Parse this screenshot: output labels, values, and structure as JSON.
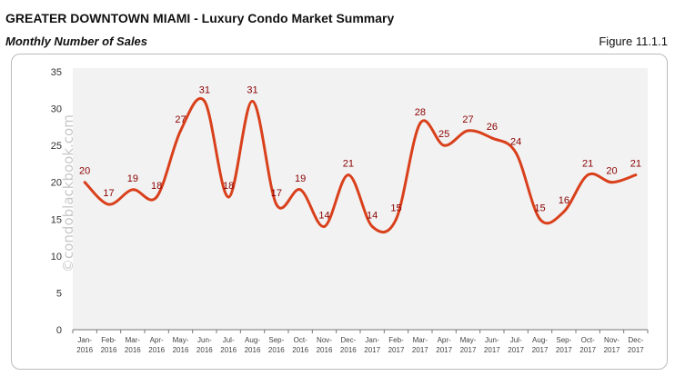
{
  "header": {
    "title": "GREATER DOWNTOWN MIAMI - Luxury Condo Market Summary",
    "subtitle": "Monthly Number of Sales",
    "figure": "Figure 11.1.1"
  },
  "chart_data": {
    "type": "line",
    "title": "",
    "xlabel": "",
    "ylabel": "",
    "ylim": [
      0,
      35
    ],
    "yticks": [
      0,
      5,
      10,
      15,
      20,
      25,
      30,
      35
    ],
    "grid": false,
    "line_color": "#d9401c",
    "label_color": "#8b0000",
    "plot_background": "#f2f2f2",
    "watermark": "©condoblackbook.com",
    "categories": [
      "Jan-2016",
      "Feb-2016",
      "Mar-2016",
      "Apr-2016",
      "May-2016",
      "Jun-2016",
      "Jul-2016",
      "Aug-2016",
      "Sep-2016",
      "Oct-2016",
      "Nov-2016",
      "Dec-2016",
      "Jan-2017",
      "Feb-2017",
      "Mar-2017",
      "Apr-2017",
      "May-2017",
      "Jun-2017",
      "Jul-2017",
      "Aug-2017",
      "Sep-2017",
      "Oct-2017",
      "Nov-2017",
      "Dec-2017"
    ],
    "values": [
      20,
      17,
      19,
      18,
      27,
      31,
      18,
      31,
      17,
      19,
      14,
      21,
      14,
      15,
      28,
      25,
      27,
      26,
      24,
      15,
      16,
      21,
      20,
      21
    ]
  }
}
